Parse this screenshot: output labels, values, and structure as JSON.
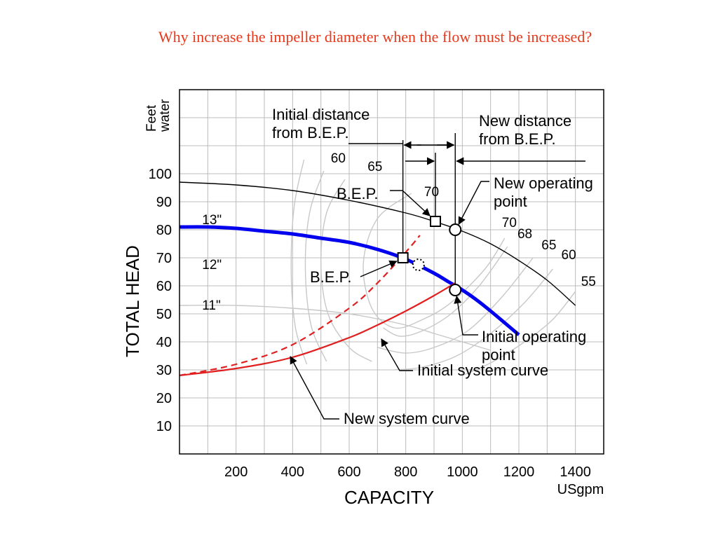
{
  "slide": {
    "title": "Why increase the impeller diameter when the flow must be increased?"
  },
  "chart_data": {
    "type": "line",
    "xlabel": "CAPACITY",
    "xunit": "USgpm",
    "ylabel": "TOTAL HEAD",
    "yunit_line1": "Feet",
    "yunit_line2": "water",
    "xlim": [
      0,
      1500
    ],
    "ylim": [
      0,
      130
    ],
    "x_ticks": [
      200,
      400,
      600,
      800,
      1000,
      1200,
      1400
    ],
    "y_ticks": [
      10,
      20,
      30,
      40,
      50,
      60,
      70,
      80,
      90,
      100
    ],
    "grid": true,
    "grid_x_step": 100,
    "grid_y_step": 10,
    "colors": {
      "pump_curve_12": "#0000ee",
      "pump_curve_13": "#000000",
      "system_curve": "#e02020",
      "grid": "#bbbbbb",
      "efficiency": "#c8c8c8"
    },
    "impeller_curves": [
      {
        "name": "13\"",
        "x": [
          0,
          200,
          400,
          600,
          800,
          900,
          1000,
          1100,
          1200,
          1300,
          1400
        ],
        "y": [
          97,
          96,
          94,
          90.5,
          86,
          83,
          79.5,
          75,
          69,
          62,
          53
        ]
      },
      {
        "name": "12\"",
        "x": [
          0,
          100,
          200,
          300,
          400,
          500,
          600,
          700,
          800,
          900,
          950,
          1000,
          1050,
          1100,
          1200
        ],
        "y": [
          81,
          81,
          80.5,
          79.5,
          78.5,
          77,
          75.5,
          73,
          69.5,
          64.5,
          61.5,
          58.5,
          55,
          51,
          42.5
        ]
      },
      {
        "name": "11\"",
        "x": [
          0,
          200,
          400,
          600,
          800,
          900,
          1000,
          1100
        ],
        "y": [
          53,
          53,
          52,
          50,
          46,
          43,
          40,
          37
        ]
      }
    ],
    "system_curves": [
      {
        "name": "Initial system curve",
        "style": "solid",
        "x": [
          0,
          200,
          400,
          600,
          700,
          800,
          900,
          975
        ],
        "y": [
          28,
          30.5,
          34.5,
          41.5,
          46,
          51,
          56.5,
          61
        ]
      },
      {
        "name": "New system curve",
        "style": "dashed",
        "x": [
          0,
          200,
          400,
          600,
          700,
          800,
          850
        ],
        "y": [
          28,
          32,
          39,
          52,
          61,
          72,
          78
        ]
      }
    ],
    "efficiency_labels": [
      {
        "text": "60",
        "x": 535,
        "y": 104
      },
      {
        "text": "65",
        "x": 665,
        "y": 101
      },
      {
        "text": "70",
        "x": 865,
        "y": 92
      },
      {
        "text": "70",
        "x": 1140,
        "y": 81
      },
      {
        "text": "68",
        "x": 1195,
        "y": 77
      },
      {
        "text": "65",
        "x": 1280,
        "y": 73
      },
      {
        "text": "60",
        "x": 1350,
        "y": 69.5
      },
      {
        "text": "55",
        "x": 1420,
        "y": 60
      }
    ],
    "curve_labels": [
      {
        "text": "13\"",
        "x": 80,
        "y": 82
      },
      {
        "text": "12\"",
        "x": 80,
        "y": 66
      },
      {
        "text": "11\"",
        "x": 80,
        "y": 51.5
      }
    ],
    "points": [
      {
        "name": "B.E.P. 13 inch",
        "marker": "square",
        "x": 905,
        "y": 83
      },
      {
        "name": "B.E.P. 12 inch",
        "marker": "square",
        "x": 790,
        "y": 70
      },
      {
        "name": "New operating point",
        "marker": "circle",
        "x": 975,
        "y": 80
      },
      {
        "name": "Initial operating point",
        "marker": "circle",
        "x": 975,
        "y": 58.5
      },
      {
        "name": "12 inch dashed intersection",
        "marker": "dotted-circle",
        "x": 845,
        "y": 67.5
      }
    ],
    "annotations": {
      "initial_distance": [
        "Initial distance",
        "from B.E.P."
      ],
      "new_distance": [
        "New distance",
        "from B.E.P."
      ],
      "bep_upper": "B.E.P.",
      "bep_lower": "B.E.P.",
      "new_operating_point": [
        "New operating",
        "point"
      ],
      "initial_operating_point": [
        "Initial operating",
        "point"
      ],
      "initial_system_curve": "Initial system curve",
      "new_system_curve": "New system curve"
    }
  }
}
